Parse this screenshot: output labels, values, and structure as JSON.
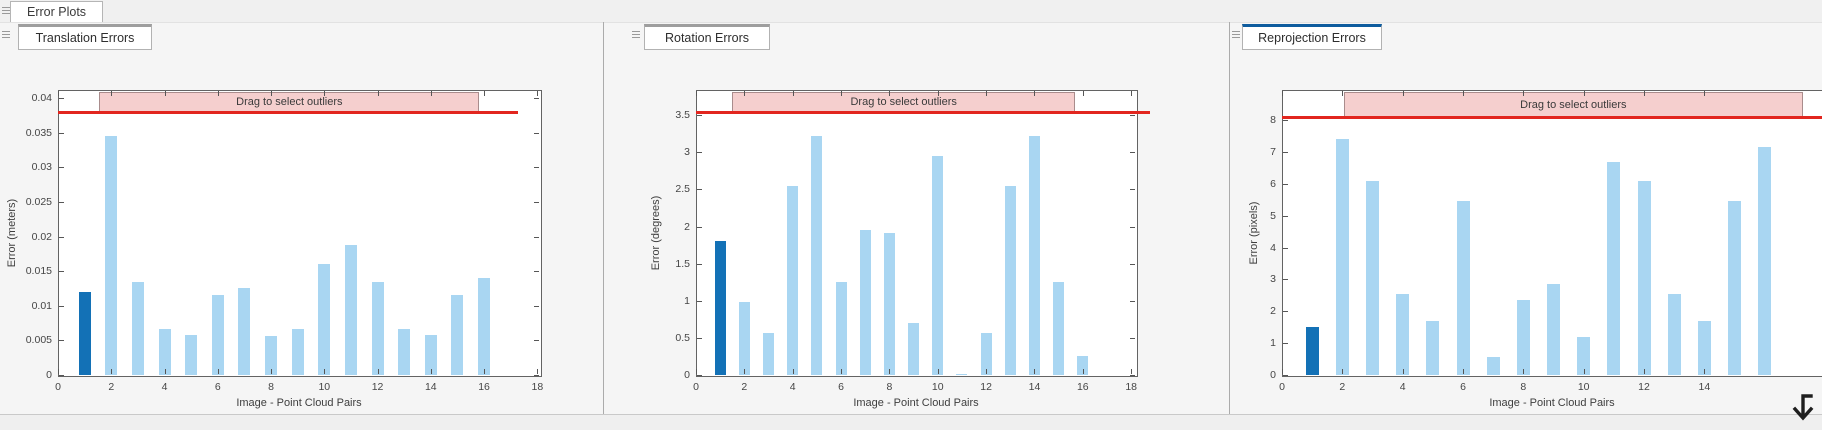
{
  "window": {
    "main_tab_label": "Error Plots"
  },
  "colors": {
    "bar_light": "#A9D6F2",
    "bar_selected": "#1371B6",
    "threshold_red": "#E2261F",
    "banner_fill": "#F5CFCE",
    "banner_border": "#A98C8C",
    "tab_accent_active": "#0E5C9E",
    "tab_accent_inactive": "#9E9E9E"
  },
  "chart_data": [
    {
      "type": "bar",
      "tab_label": "Translation Errors",
      "xlabel": "Image - Point Cloud Pairs",
      "ylabel": "Error (meters)",
      "banner_label": "Drag to select outliers",
      "x": [
        1,
        2,
        3,
        4,
        5,
        6,
        7,
        8,
        9,
        10,
        11,
        12,
        13,
        14,
        15,
        16
      ],
      "values": [
        0.012,
        0.0345,
        0.0135,
        0.0066,
        0.0058,
        0.0116,
        0.0126,
        0.0056,
        0.0067,
        0.016,
        0.0188,
        0.0135,
        0.0066,
        0.0058,
        0.0116,
        0.014
      ],
      "selected_bar": 1,
      "threshold": 0.038,
      "ylim": [
        0,
        0.0412
      ],
      "xlim": [
        0,
        18.1
      ],
      "ytick_values": [
        0,
        0.005,
        0.01,
        0.015,
        0.02,
        0.025,
        0.03,
        0.035,
        0.04
      ],
      "ytick_labels": [
        "0",
        "0.005",
        "0.01",
        "0.015",
        "0.02",
        "0.025",
        "0.03",
        "0.035",
        "0.04"
      ],
      "xticks": [
        0,
        2,
        4,
        6,
        8,
        10,
        12,
        14,
        16,
        18
      ],
      "banner_span": [
        1.55,
        15.75
      ],
      "grid": false,
      "legend": null
    },
    {
      "type": "bar",
      "tab_label": "Rotation Errors",
      "xlabel": "Image - Point Cloud Pairs",
      "ylabel": "Error (degrees)",
      "banner_label": "Drag to select outliers",
      "x": [
        1,
        2,
        3,
        4,
        5,
        6,
        7,
        8,
        9,
        10,
        11,
        12,
        13,
        14,
        15,
        16
      ],
      "values": [
        1.8,
        0.98,
        0.57,
        2.55,
        3.22,
        1.25,
        1.95,
        1.92,
        0.7,
        2.95,
        0.02,
        0.57,
        2.55,
        3.22,
        1.25,
        0.25
      ],
      "selected_bar": 1,
      "threshold": 3.55,
      "ylim": [
        0,
        3.84
      ],
      "xlim": [
        0,
        18.2
      ],
      "ytick_values": [
        0,
        0.5,
        1,
        1.5,
        2,
        2.5,
        3,
        3.5
      ],
      "ytick_labels": [
        "0",
        "0.5",
        "1",
        "1.5",
        "2",
        "2.5",
        "3",
        "3.5"
      ],
      "xticks": [
        0,
        2,
        4,
        6,
        8,
        10,
        12,
        14,
        16,
        18
      ],
      "banner_span": [
        1.5,
        15.6
      ],
      "grid": false,
      "legend": null
    },
    {
      "type": "bar",
      "tab_label": "Reprojection Errors",
      "xlabel": "Image - Point Cloud Pairs",
      "ylabel": "Error (pixels)",
      "banner_label": "Drag to select outliers",
      "x": [
        1,
        2,
        3,
        4,
        5,
        6,
        7,
        8,
        9,
        10,
        11,
        12,
        13,
        14,
        15,
        16
      ],
      "values": [
        1.5,
        7.4,
        6.1,
        2.55,
        1.7,
        5.45,
        0.55,
        2.35,
        2.85,
        1.2,
        6.7,
        6.1,
        2.55,
        1.7,
        5.45,
        7.15
      ],
      "selected_bar": 1,
      "threshold": 8.1,
      "ylim": [
        0,
        8.95
      ],
      "xlim": [
        0,
        17.9
      ],
      "ytick_values": [
        0,
        1,
        2,
        3,
        4,
        5,
        6,
        7,
        8
      ],
      "ytick_labels": [
        "0",
        "1",
        "2",
        "3",
        "4",
        "5",
        "6",
        "7",
        "8"
      ],
      "xticks": [
        0,
        2,
        4,
        6,
        8,
        10,
        12,
        14
      ],
      "banner_span": [
        2.05,
        17.2
      ],
      "grid": false,
      "legend": null
    }
  ]
}
